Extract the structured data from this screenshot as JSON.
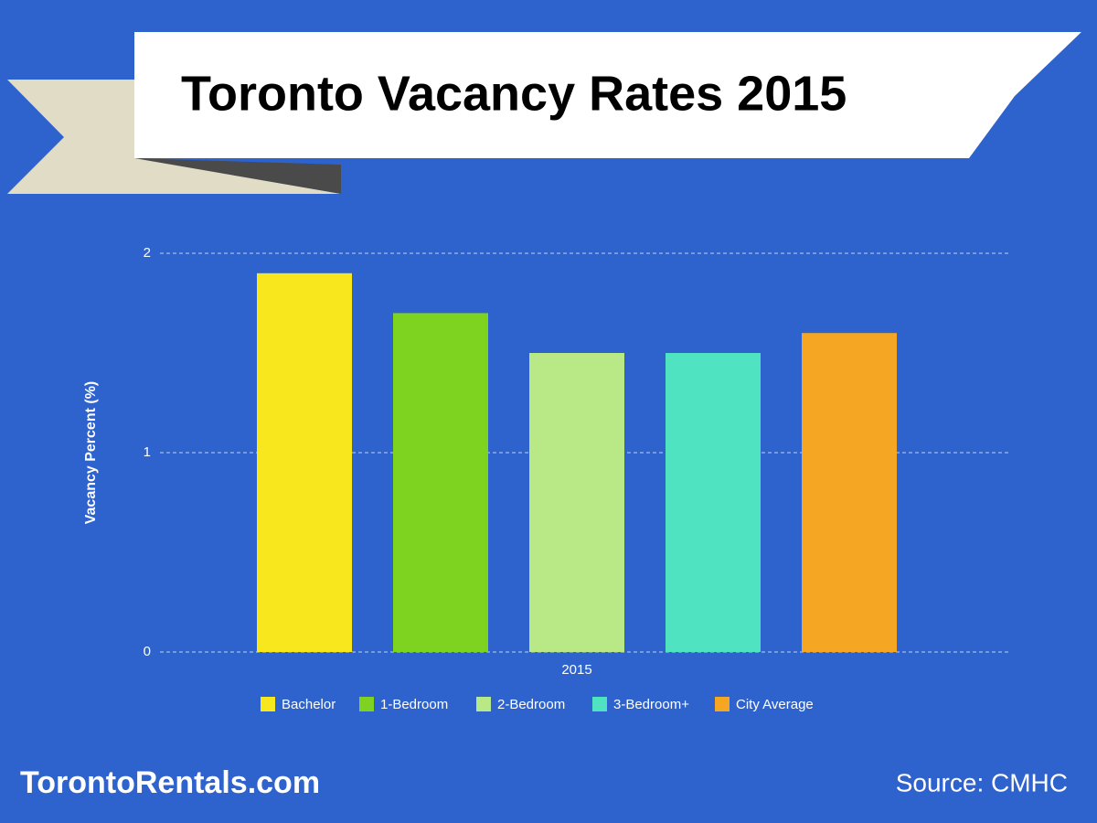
{
  "chart_data": {
    "type": "bar",
    "title": "Toronto Vacancy Rates 2015",
    "categories": [
      "2015"
    ],
    "series": [
      {
        "name": "Bachelor",
        "color": "#f8e71c",
        "values": [
          1.9
        ]
      },
      {
        "name": "1-Bedroom",
        "color": "#7ed321",
        "values": [
          1.7
        ]
      },
      {
        "name": "2-Bedroom",
        "color": "#b8e986",
        "values": [
          1.5
        ]
      },
      {
        "name": "3-Bedroom+",
        "color": "#50e3c2",
        "values": [
          1.5
        ]
      },
      {
        "name": "City Average",
        "color": "#f5a623",
        "values": [
          1.6
        ]
      }
    ],
    "ylabel": "Vacancy Percent (%)",
    "ylim": [
      0,
      2
    ],
    "yticks": [
      0,
      1,
      2
    ],
    "grid": true,
    "legend": "bottom",
    "footer_left": "TorontoRentals.com",
    "footer_right": "Source: CMHC"
  }
}
